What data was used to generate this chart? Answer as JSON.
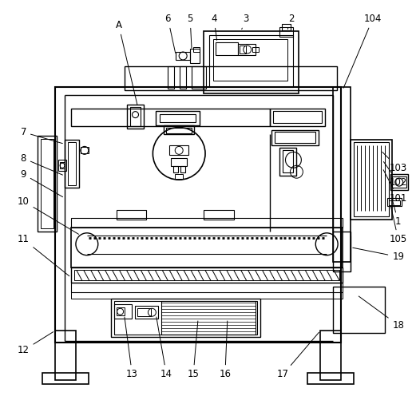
{
  "background_color": "#ffffff",
  "line_color": "#000000",
  "figsize": [
    5.26,
    5.11
  ],
  "dpi": 100
}
